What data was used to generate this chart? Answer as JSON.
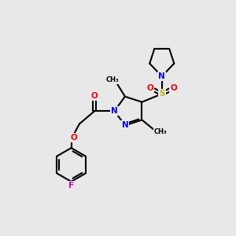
{
  "background_color": "#e8e8e8",
  "bond_color": "#000000",
  "atom_colors": {
    "N": "#0000ff",
    "O": "#ff0000",
    "S": "#b8b800",
    "F": "#cc00cc",
    "C": "#000000"
  },
  "figsize": [
    3.0,
    3.0
  ],
  "dpi": 100
}
